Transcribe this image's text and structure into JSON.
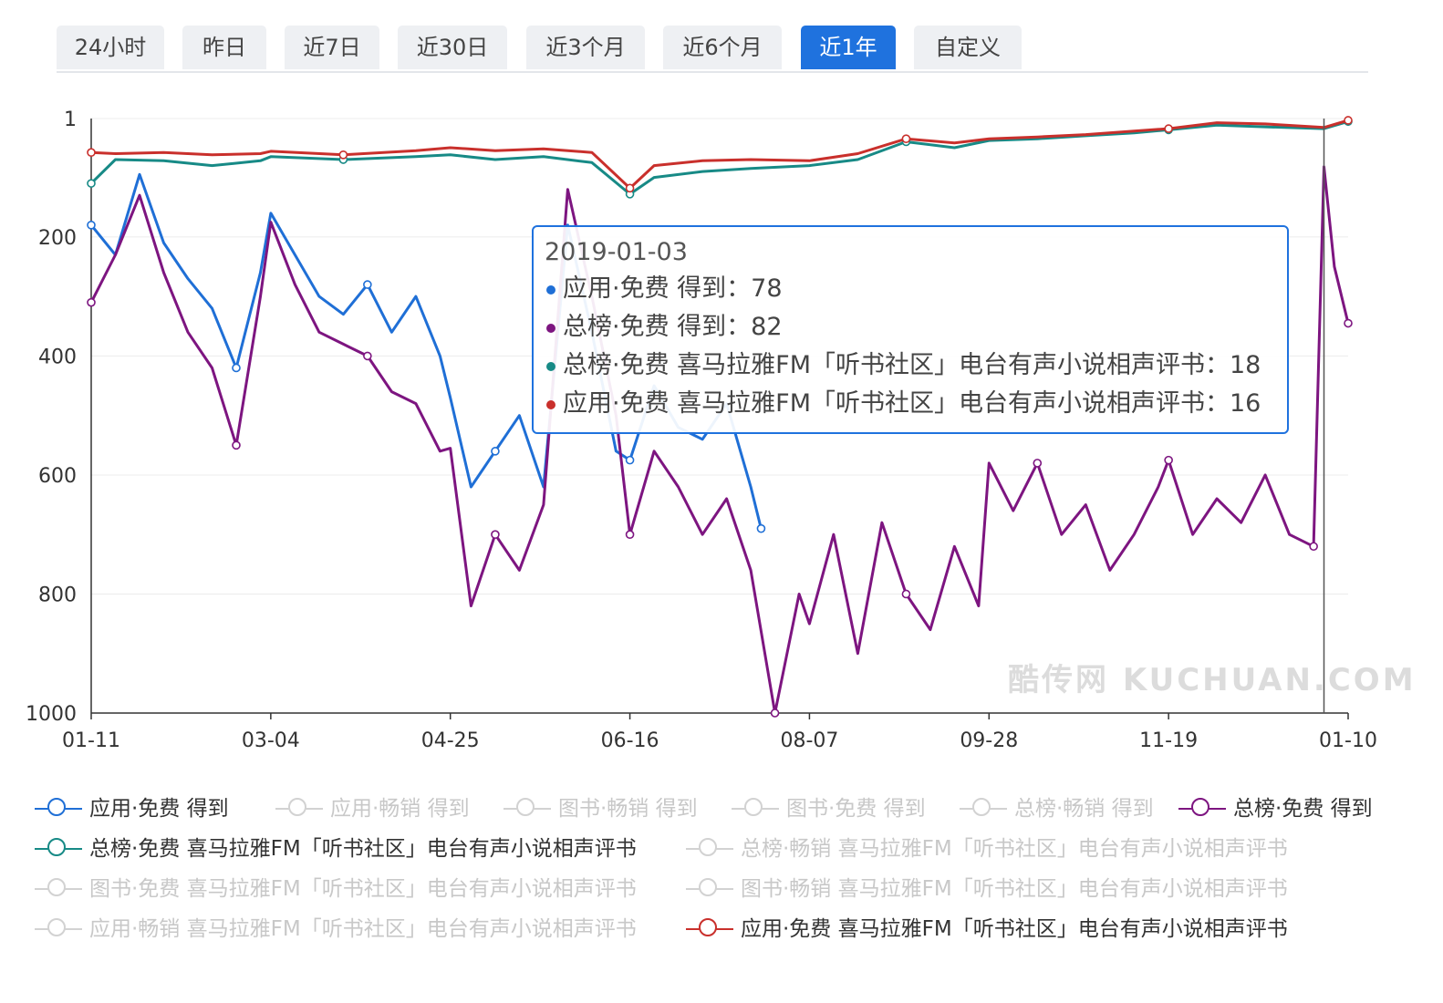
{
  "tabs": [
    {
      "label": "24小时",
      "active": false
    },
    {
      "label": "昨日",
      "active": false
    },
    {
      "label": "近7日",
      "active": false
    },
    {
      "label": "近30日",
      "active": false
    },
    {
      "label": "近3个月",
      "active": false
    },
    {
      "label": "近6个月",
      "active": false
    },
    {
      "label": "近1年",
      "active": true
    },
    {
      "label": "自定义",
      "active": false
    }
  ],
  "watermark": "酷传网 KUCHUAN.COM",
  "tooltip": {
    "date": "2019-01-03",
    "rows": [
      {
        "label": "应用·免费 得到：78",
        "color": "#1f6fd6"
      },
      {
        "label": "总榜·免费 得到：82",
        "color": "#7d1580"
      },
      {
        "label": "总榜·免费 喜马拉雅FM「听书社区」电台有声小说相声评书：18",
        "color": "#178a86"
      },
      {
        "label": "应用·免费 喜马拉雅FM「听书社区」电台有声小说相声评书：16",
        "color": "#c9302c"
      }
    ]
  },
  "legend": [
    {
      "label": "应用·免费  得到",
      "color": "#1f6fd6",
      "active": true
    },
    {
      "label": "应用·畅销  得到",
      "color": "#cccccc",
      "active": false
    },
    {
      "label": "图书·畅销  得到",
      "color": "#cccccc",
      "active": false
    },
    {
      "label": "图书·免费  得到",
      "color": "#cccccc",
      "active": false
    },
    {
      "label": "总榜·畅销  得到",
      "color": "#cccccc",
      "active": false
    },
    {
      "label": "总榜·免费  得到",
      "color": "#7d1580",
      "active": true
    },
    {
      "label": "总榜·免费  喜马拉雅FM「听书社区」电台有声小说相声评书",
      "color": "#178a86",
      "active": true
    },
    {
      "label": "总榜·畅销  喜马拉雅FM「听书社区」电台有声小说相声评书",
      "color": "#cccccc",
      "active": false
    },
    {
      "label": "图书·免费  喜马拉雅FM「听书社区」电台有声小说相声评书",
      "color": "#cccccc",
      "active": false
    },
    {
      "label": "图书·畅销  喜马拉雅FM「听书社区」电台有声小说相声评书",
      "color": "#cccccc",
      "active": false
    },
    {
      "label": "应用·畅销  喜马拉雅FM「听书社区」电台有声小说相声评书",
      "color": "#cccccc",
      "active": false
    },
    {
      "label": "应用·免费  喜马拉雅FM「听书社区」电台有声小说相声评书",
      "color": "#c9302c",
      "active": true
    }
  ],
  "chart_data": {
    "type": "line",
    "y_inverted": true,
    "ylim": [
      1,
      1000
    ],
    "y_ticks": [
      "1",
      "200",
      "400",
      "600",
      "800",
      "1000"
    ],
    "y_tick_values": [
      1,
      200,
      400,
      600,
      800,
      1000
    ],
    "x_range": [
      "2018-01-11",
      "2019-01-10"
    ],
    "x_ticks": [
      "01-11",
      "03-04",
      "04-25",
      "06-16",
      "08-07",
      "09-28",
      "11-19",
      "01-10"
    ],
    "x_tick_dates": [
      "2018-01-11",
      "2018-03-04",
      "2018-04-25",
      "2018-06-16",
      "2018-08-07",
      "2018-09-28",
      "2018-11-19",
      "2019-01-10"
    ],
    "crosshair_date": "2019-01-03",
    "grid": true,
    "series": [
      {
        "name": "应用·免费  得到",
        "color": "#1f6fd6",
        "points": [
          [
            "2018-01-11",
            180
          ],
          [
            "2018-01-18",
            230
          ],
          [
            "2018-01-25",
            95
          ],
          [
            "2018-02-01",
            210
          ],
          [
            "2018-02-08",
            270
          ],
          [
            "2018-02-15",
            320
          ],
          [
            "2018-02-22",
            420
          ],
          [
            "2018-03-01",
            260
          ],
          [
            "2018-03-04",
            160
          ],
          [
            "2018-03-11",
            230
          ],
          [
            "2018-03-18",
            300
          ],
          [
            "2018-03-25",
            330
          ],
          [
            "2018-04-01",
            280
          ],
          [
            "2018-04-08",
            360
          ],
          [
            "2018-04-15",
            300
          ],
          [
            "2018-04-22",
            400
          ],
          [
            "2018-04-25",
            470
          ],
          [
            "2018-05-01",
            620
          ],
          [
            "2018-05-08",
            560
          ],
          [
            "2018-05-15",
            500
          ],
          [
            "2018-05-22",
            620
          ],
          [
            "2018-05-29",
            180
          ],
          [
            "2018-06-05",
            360
          ],
          [
            "2018-06-12",
            560
          ],
          [
            "2018-06-16",
            575
          ],
          [
            "2018-06-23",
            450
          ],
          [
            "2018-06-30",
            520
          ],
          [
            "2018-07-07",
            540
          ],
          [
            "2018-07-14",
            480
          ],
          [
            "2018-07-21",
            620
          ],
          [
            "2018-07-24",
            690
          ]
        ]
      },
      {
        "name": "总榜·免费  得到",
        "color": "#7d1580",
        "points": [
          [
            "2018-01-11",
            310
          ],
          [
            "2018-01-18",
            230
          ],
          [
            "2018-01-25",
            130
          ],
          [
            "2018-02-01",
            260
          ],
          [
            "2018-02-08",
            360
          ],
          [
            "2018-02-15",
            420
          ],
          [
            "2018-02-22",
            550
          ],
          [
            "2018-03-01",
            300
          ],
          [
            "2018-03-04",
            175
          ],
          [
            "2018-03-11",
            280
          ],
          [
            "2018-03-18",
            360
          ],
          [
            "2018-03-25",
            380
          ],
          [
            "2018-04-01",
            400
          ],
          [
            "2018-04-08",
            460
          ],
          [
            "2018-04-15",
            480
          ],
          [
            "2018-04-22",
            560
          ],
          [
            "2018-04-25",
            555
          ],
          [
            "2018-05-01",
            820
          ],
          [
            "2018-05-08",
            700
          ],
          [
            "2018-05-15",
            760
          ],
          [
            "2018-05-22",
            650
          ],
          [
            "2018-05-29",
            120
          ],
          [
            "2018-06-05",
            300
          ],
          [
            "2018-06-12",
            500
          ],
          [
            "2018-06-16",
            700
          ],
          [
            "2018-06-23",
            560
          ],
          [
            "2018-06-30",
            620
          ],
          [
            "2018-07-07",
            700
          ],
          [
            "2018-07-14",
            640
          ],
          [
            "2018-07-21",
            760
          ],
          [
            "2018-07-28",
            1000
          ],
          [
            "2018-08-04",
            800
          ],
          [
            "2018-08-07",
            850
          ],
          [
            "2018-08-14",
            700
          ],
          [
            "2018-08-21",
            900
          ],
          [
            "2018-08-28",
            680
          ],
          [
            "2018-09-04",
            800
          ],
          [
            "2018-09-11",
            860
          ],
          [
            "2018-09-18",
            720
          ],
          [
            "2018-09-25",
            820
          ],
          [
            "2018-09-28",
            580
          ],
          [
            "2018-10-05",
            660
          ],
          [
            "2018-10-12",
            580
          ],
          [
            "2018-10-19",
            700
          ],
          [
            "2018-10-26",
            650
          ],
          [
            "2018-11-02",
            760
          ],
          [
            "2018-11-09",
            700
          ],
          [
            "2018-11-16",
            620
          ],
          [
            "2018-11-19",
            575
          ],
          [
            "2018-11-26",
            700
          ],
          [
            "2018-12-03",
            640
          ],
          [
            "2018-12-10",
            680
          ],
          [
            "2018-12-17",
            600
          ],
          [
            "2018-12-24",
            700
          ],
          [
            "2018-12-31",
            720
          ],
          [
            "2019-01-03",
            82
          ],
          [
            "2019-01-06",
            250
          ],
          [
            "2019-01-10",
            345
          ]
        ]
      },
      {
        "name": "总榜·免费  喜马拉雅FM「听书社区」电台有声小说相声评书",
        "color": "#178a86",
        "points": [
          [
            "2018-01-11",
            110
          ],
          [
            "2018-01-18",
            70
          ],
          [
            "2018-02-01",
            72
          ],
          [
            "2018-02-15",
            80
          ],
          [
            "2018-03-01",
            72
          ],
          [
            "2018-03-04",
            65
          ],
          [
            "2018-03-25",
            70
          ],
          [
            "2018-04-15",
            65
          ],
          [
            "2018-04-25",
            62
          ],
          [
            "2018-05-08",
            70
          ],
          [
            "2018-05-22",
            65
          ],
          [
            "2018-06-05",
            75
          ],
          [
            "2018-06-16",
            128
          ],
          [
            "2018-06-23",
            100
          ],
          [
            "2018-07-07",
            90
          ],
          [
            "2018-07-21",
            85
          ],
          [
            "2018-08-07",
            80
          ],
          [
            "2018-08-21",
            70
          ],
          [
            "2018-09-04",
            40
          ],
          [
            "2018-09-18",
            50
          ],
          [
            "2018-09-28",
            38
          ],
          [
            "2018-10-12",
            35
          ],
          [
            "2018-10-26",
            30
          ],
          [
            "2018-11-09",
            25
          ],
          [
            "2018-11-19",
            20
          ],
          [
            "2018-12-03",
            12
          ],
          [
            "2018-12-17",
            15
          ],
          [
            "2019-01-03",
            18
          ],
          [
            "2019-01-10",
            6
          ]
        ]
      },
      {
        "name": "应用·免费  喜马拉雅FM「听书社区」电台有声小说相声评书",
        "color": "#c9302c",
        "points": [
          [
            "2018-01-11",
            58
          ],
          [
            "2018-01-18",
            60
          ],
          [
            "2018-02-01",
            58
          ],
          [
            "2018-02-15",
            62
          ],
          [
            "2018-03-01",
            60
          ],
          [
            "2018-03-04",
            56
          ],
          [
            "2018-03-25",
            62
          ],
          [
            "2018-04-15",
            55
          ],
          [
            "2018-04-25",
            50
          ],
          [
            "2018-05-08",
            55
          ],
          [
            "2018-05-22",
            52
          ],
          [
            "2018-06-05",
            58
          ],
          [
            "2018-06-16",
            118
          ],
          [
            "2018-06-23",
            80
          ],
          [
            "2018-07-07",
            72
          ],
          [
            "2018-07-21",
            70
          ],
          [
            "2018-08-07",
            72
          ],
          [
            "2018-08-21",
            60
          ],
          [
            "2018-09-04",
            35
          ],
          [
            "2018-09-18",
            42
          ],
          [
            "2018-09-28",
            35
          ],
          [
            "2018-10-12",
            32
          ],
          [
            "2018-10-26",
            28
          ],
          [
            "2018-11-09",
            22
          ],
          [
            "2018-11-19",
            18
          ],
          [
            "2018-12-03",
            8
          ],
          [
            "2018-12-17",
            10
          ],
          [
            "2019-01-03",
            16
          ],
          [
            "2019-01-10",
            4
          ]
        ]
      }
    ]
  }
}
